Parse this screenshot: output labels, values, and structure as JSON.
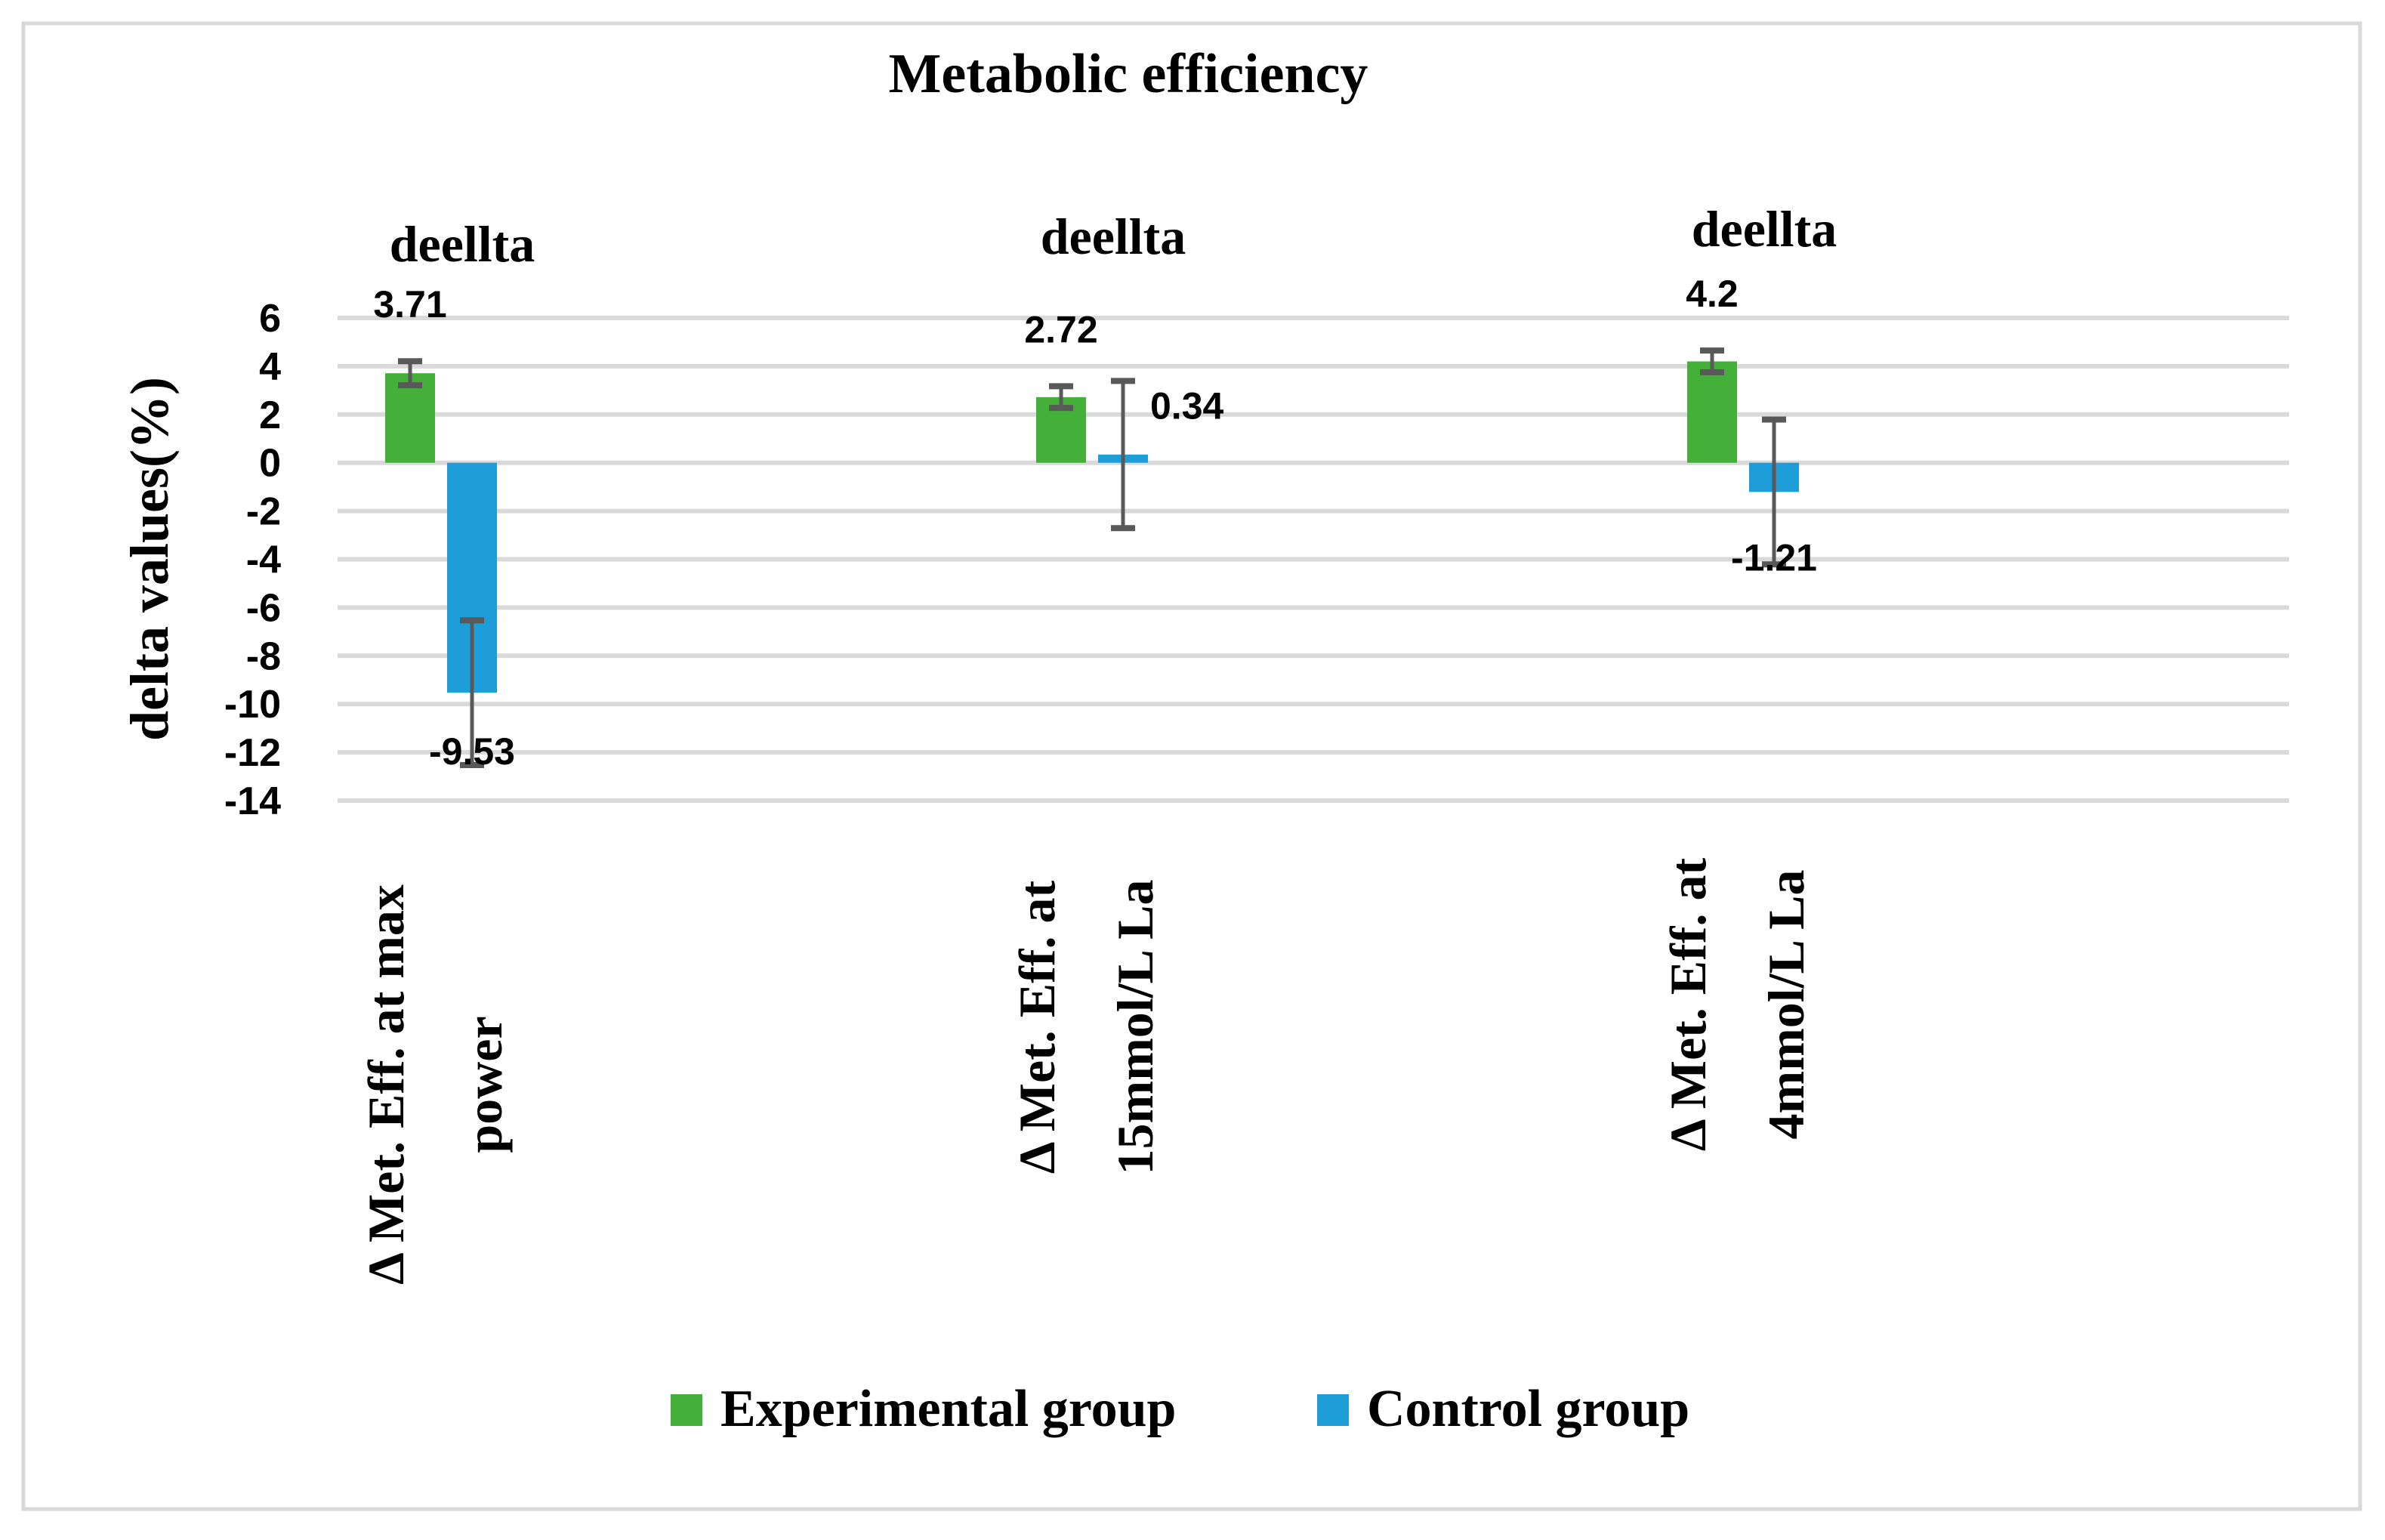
{
  "chart_data": {
    "type": "bar",
    "title": "Metabolic efficiency",
    "ylabel": "delta values(%)",
    "xlabel": "",
    "ylim": [
      -14,
      6
    ],
    "yticks": [
      6,
      4,
      2,
      0,
      -2,
      -4,
      -6,
      -8,
      -10,
      -12,
      -14
    ],
    "grid": true,
    "legend_position": "bottom",
    "categories": [
      [
        "Δ Met. Eff. at max",
        "power"
      ],
      [
        "Δ Met. Eff. at",
        "15mmol/L La"
      ],
      [
        "Δ Met. Eff. at",
        "4mmol/L La"
      ]
    ],
    "group_annotations": [
      "deellta",
      "deellta",
      "deellta"
    ],
    "series": [
      {
        "name": "Experimental group",
        "color": "#44b03a",
        "values": [
          3.71,
          2.72,
          4.2
        ],
        "labels": [
          "3.71",
          "2.72",
          "4.2"
        ],
        "error": [
          0.5,
          0.45,
          0.45
        ]
      },
      {
        "name": "Control group",
        "color": "#1e9ed9",
        "values": [
          -9.53,
          0.34,
          -1.21
        ],
        "labels": [
          "-9.53",
          "0.34",
          "-1.21"
        ],
        "error": [
          3.0,
          3.05,
          3.0
        ]
      }
    ],
    "colors": {
      "grid": "#d9d9d9",
      "error_bar": "#595959",
      "border": "#d9d9d9"
    }
  }
}
